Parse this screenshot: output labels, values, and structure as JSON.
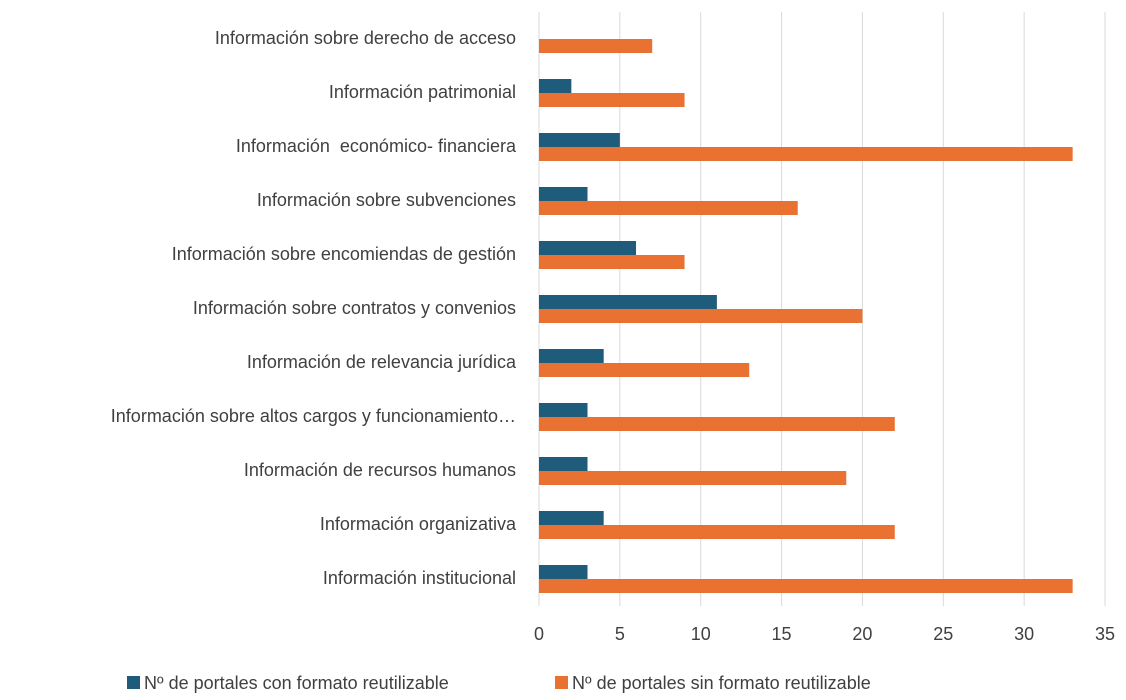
{
  "chart_data": {
    "type": "barh",
    "categories": [
      "Información sobre derecho de acceso",
      "Información patrimonial",
      "Información  económico- financiera",
      "Información sobre subvenciones",
      "Información sobre encomiendas de gestión",
      "Información sobre contratos y convenios",
      "Información de relevancia jurídica",
      "Información sobre altos cargos y funcionamiento…",
      "Información de recursos humanos",
      "Información organizativa",
      "Información institucional"
    ],
    "series": [
      {
        "name": "Nº de portales con formato reutilizable",
        "color": "#1f5c7c",
        "values": [
          0,
          2,
          5,
          3,
          6,
          11,
          4,
          3,
          3,
          4,
          3
        ]
      },
      {
        "name": "Nº de portales sin formato reutilizable",
        "color": "#e97132",
        "values": [
          7,
          9,
          33,
          16,
          9,
          20,
          13,
          22,
          19,
          22,
          33
        ]
      }
    ],
    "xlim": [
      0,
      35
    ],
    "xticks": [
      0,
      5,
      10,
      15,
      20,
      25,
      30,
      35
    ],
    "grid": true,
    "legend": "bottom"
  }
}
